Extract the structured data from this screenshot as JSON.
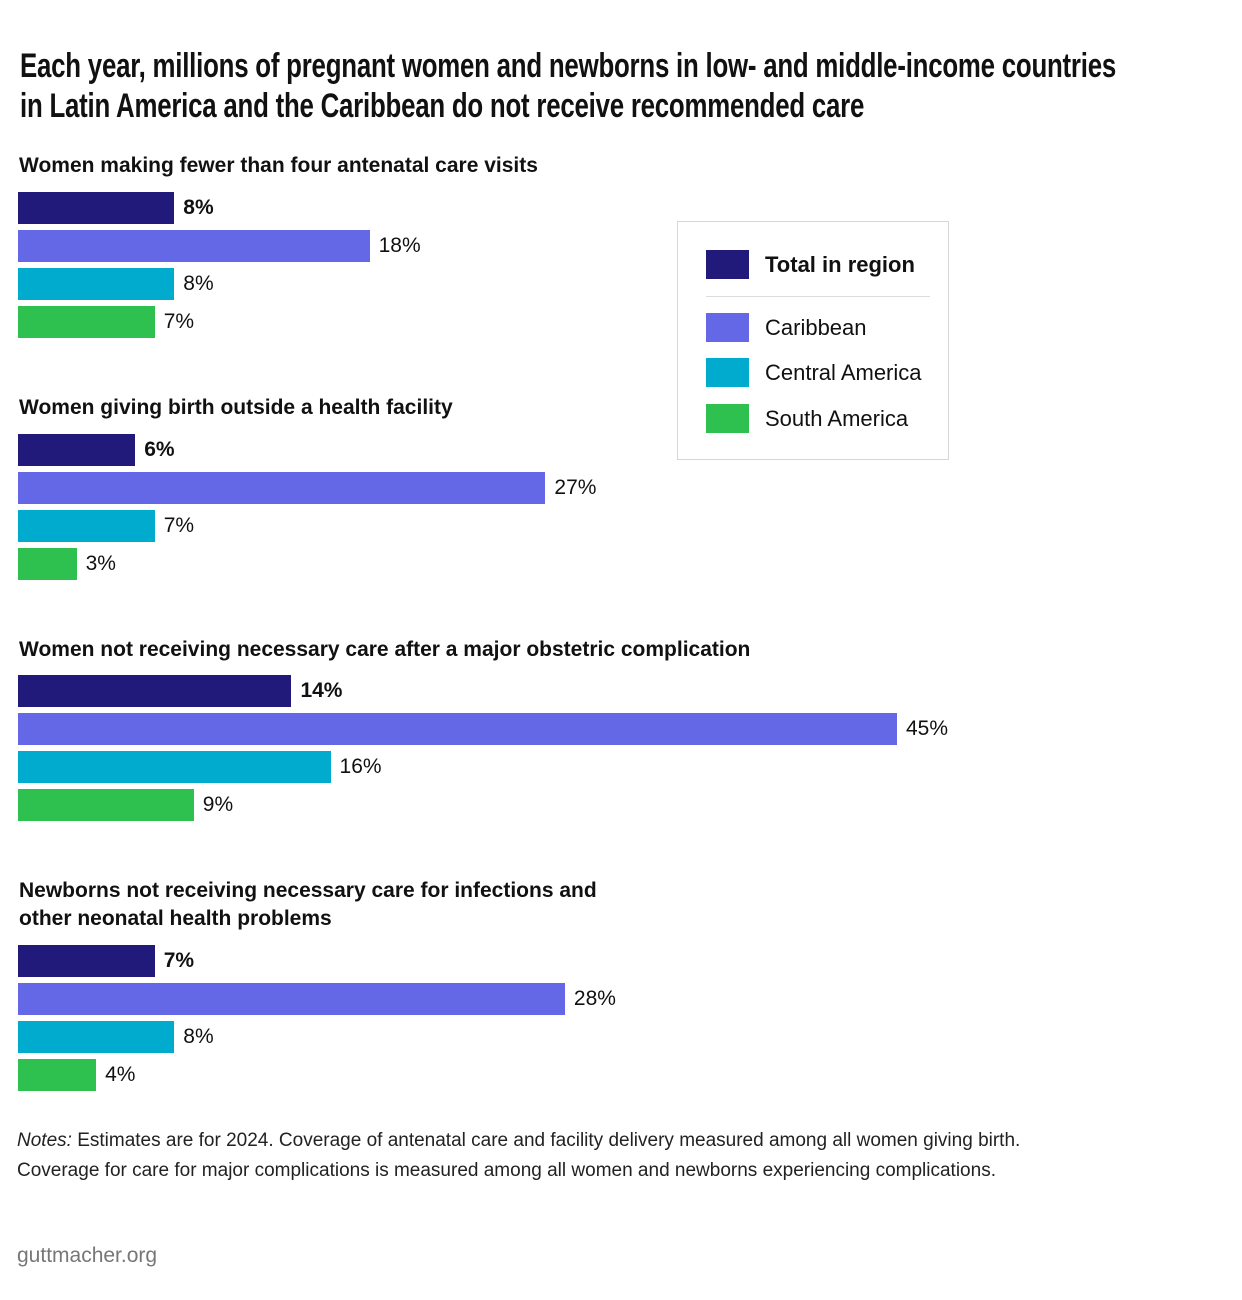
{
  "chart_data": {
    "type": "bar",
    "orientation": "horizontal",
    "title": "Each year, millions of pregnant women and newborns in low- and middle-income countries in Latin America and the Caribbean do not receive recommended care",
    "title_lines": [
      "Each year, millions of pregnant women and newborns in low- and middle-income countries",
      "in Latin America and the Caribbean do not receive recommended care"
    ],
    "unit": "%",
    "grid": false,
    "legend_position": "right",
    "series": [
      {
        "name": "Total in region",
        "color": "#221a7a"
      },
      {
        "name": "Caribbean",
        "color": "#6468e6"
      },
      {
        "name": "Central America",
        "color": "#00abcd"
      },
      {
        "name": "South America",
        "color": "#2ec14f"
      }
    ],
    "groups": [
      {
        "title": "Women making fewer than four antenatal care visits",
        "values": [
          8,
          18,
          8,
          7
        ],
        "labels": [
          "8%",
          "18%",
          "8%",
          "7%"
        ]
      },
      {
        "title": "Women giving birth outside a health facility",
        "values": [
          6,
          27,
          7,
          3
        ],
        "labels": [
          "6%",
          "27%",
          "7%",
          "3%"
        ]
      },
      {
        "title": "Women not receiving necessary care after a major obstetric complication",
        "values": [
          14,
          45,
          16,
          9
        ],
        "labels": [
          "14%",
          "45%",
          "16%",
          "9%"
        ]
      },
      {
        "title": "Newborns not receiving necessary care for infections and other neonatal health problems",
        "title_lines": [
          "Newborns not receiving necessary care for infections and",
          "other neonatal health problems"
        ],
        "values": [
          7,
          28,
          8,
          4
        ],
        "labels": [
          "7%",
          "28%",
          "8%",
          "4%"
        ]
      }
    ]
  },
  "notes": {
    "prefix": "Notes:",
    "line1": " Estimates are for 2024. Coverage of antenatal care and facility delivery measured among all women giving birth.",
    "line2": "Coverage for care for major complications is measured among all women and newborns experiencing complications."
  },
  "footer": "guttmacher.org"
}
